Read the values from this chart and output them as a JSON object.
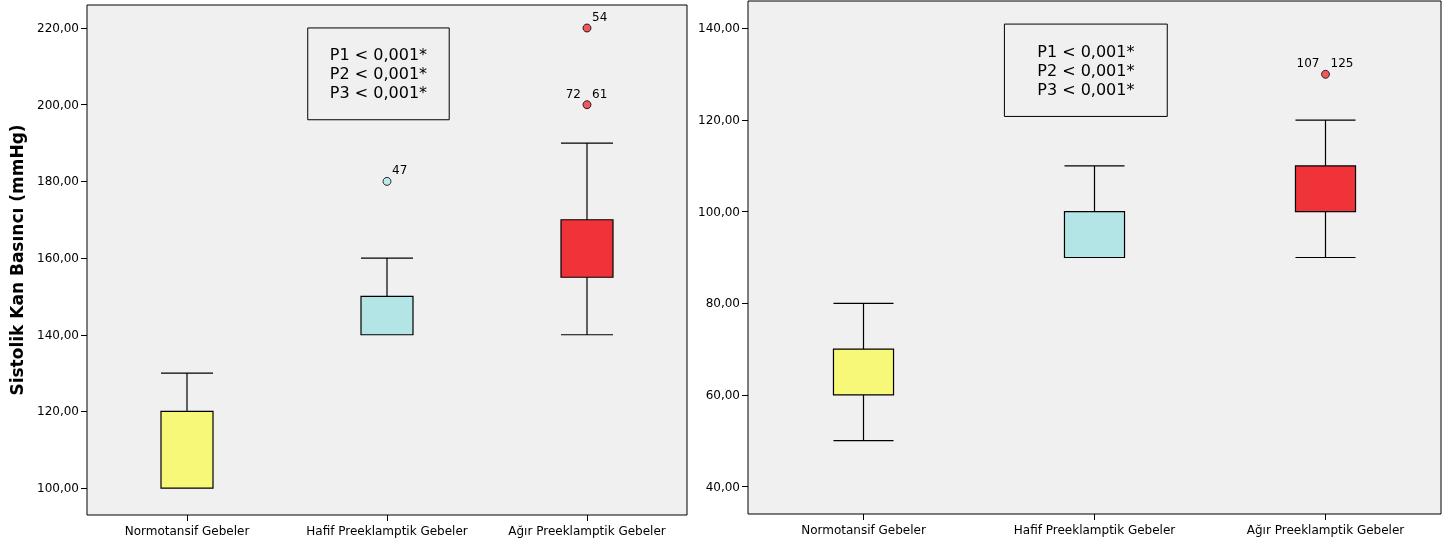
{
  "chart_data": [
    {
      "type": "box",
      "ylabel": "Sistolik Kan Basıncı (mmHg)",
      "categories": [
        "Normotansif Gebeler",
        "Hafif Preeklamptik Gebeler",
        "Ağır Preeklamptik Gebeler"
      ],
      "boxes": [
        {
          "low": 100,
          "q1": 100,
          "median": 100,
          "q3": 120,
          "high": 130
        },
        {
          "low": 140,
          "q1": 140,
          "median": 150,
          "q3": 150,
          "high": 160,
          "outliers": [
            180
          ]
        },
        {
          "low": 140,
          "q1": 155,
          "median": 170,
          "q3": 170,
          "high": 190,
          "outliers": [
            220,
            200
          ]
        }
      ],
      "colors": [
        "#f8f878",
        "#b3e5e6",
        "#ef3338"
      ],
      "ylim": [
        93,
        226
      ],
      "yticks": [
        {
          "value": 100,
          "label": "100,00"
        },
        {
          "value": 120,
          "label": "120,00"
        },
        {
          "value": 140,
          "label": "140,00"
        },
        {
          "value": 160,
          "label": "160,00"
        },
        {
          "value": 180,
          "label": "180,00"
        },
        {
          "value": 200,
          "label": "200,00"
        },
        {
          "value": 220,
          "label": "220,00"
        }
      ],
      "grid": false,
      "annotations": [
        "P1 < 0,001*\nP2 < 0,001*\nP3 < 0,001*",
        "47",
        "54",
        "61",
        "72"
      ]
    },
    {
      "type": "box",
      "categories": [
        "Normotansif Gebeler",
        "Hafif Preeklamptik Gebeler",
        "Ağır Preeklamptik Gebeler"
      ],
      "boxes": [
        {
          "low": 50,
          "q1": 60,
          "median": 70,
          "q3": 70,
          "high": 80
        },
        {
          "low": 90,
          "q1": 90,
          "median": 90,
          "q3": 100,
          "high": 110
        },
        {
          "low": 90,
          "q1": 100,
          "median": 100,
          "q3": 110,
          "high": 120,
          "outliers": [
            130
          ]
        }
      ],
      "colors": [
        "#f8f878",
        "#b3e5e6",
        "#ef3338"
      ],
      "ylim": [
        34,
        146
      ],
      "yticks": [
        {
          "value": 40,
          "label": "40,00"
        },
        {
          "value": 60,
          "label": "60,00"
        },
        {
          "value": 80,
          "label": "80,00"
        },
        {
          "value": 100,
          "label": "100,00"
        },
        {
          "value": 120,
          "label": "120,00"
        },
        {
          "value": 140,
          "label": "140,00"
        }
      ],
      "grid": false,
      "annotations": [
        "P1 < 0,001*\nP2 < 0,001*\nP3 < 0,001*",
        "125",
        "107"
      ]
    }
  ]
}
